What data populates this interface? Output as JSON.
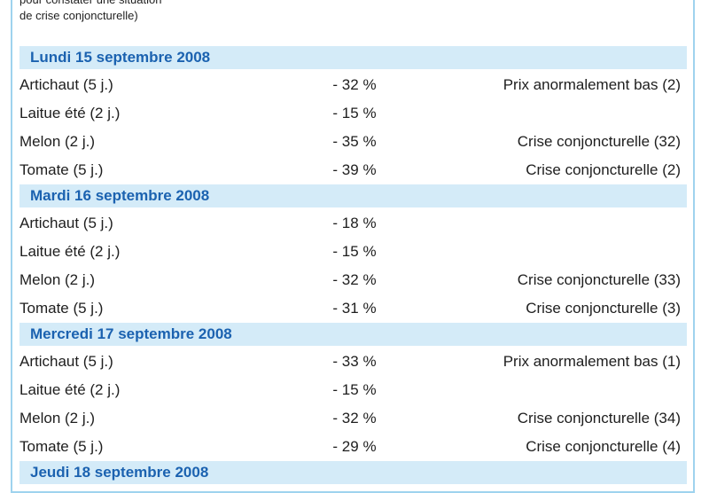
{
  "intro": [
    "pour constater une situation",
    "de crise conjoncturelle)"
  ],
  "sections": [
    {
      "title": "Lundi 15 septembre 2008",
      "rows": [
        {
          "product": "Artichaut (5 j.)",
          "change": "- 32 %",
          "status": "Prix anormalement bas (2)"
        },
        {
          "product": "Laitue été (2 j.)",
          "change": "- 15 %"
        },
        {
          "product": "Melon (2 j.)",
          "change": "- 35 %",
          "status": "Crise conjoncturelle (32)"
        },
        {
          "product": "Tomate (5 j.)",
          "change": "- 39 %",
          "status": "Crise conjoncturelle (2)"
        }
      ]
    },
    {
      "title": "Mardi 16 septembre 2008",
      "rows": [
        {
          "product": "Artichaut (5 j.)",
          "change": "- 18 %"
        },
        {
          "product": "Laitue été (2 j.)",
          "change": "- 15 %"
        },
        {
          "product": "Melon (2 j.)",
          "change": "- 32 %",
          "status": "Crise conjoncturelle (33)"
        },
        {
          "product": "Tomate (5 j.)",
          "change": "- 31 %",
          "status": "Crise conjoncturelle (3)"
        }
      ]
    },
    {
      "title": "Mercredi 17 septembre 2008",
      "rows": [
        {
          "product": "Artichaut (5 j.)",
          "change": "- 33 %",
          "status": "Prix anormalement bas (1)"
        },
        {
          "product": "Laitue été (2 j.)",
          "change": "- 15 %"
        },
        {
          "product": "Melon (2 j.)",
          "change": "- 32 %",
          "status": "Crise conjoncturelle (34)"
        },
        {
          "product": "Tomate (5 j.)",
          "change": "- 29 %",
          "status": "Crise conjoncturelle (4)"
        }
      ]
    },
    {
      "title": "Jeudi 18 septembre 2008",
      "rows": []
    }
  ]
}
